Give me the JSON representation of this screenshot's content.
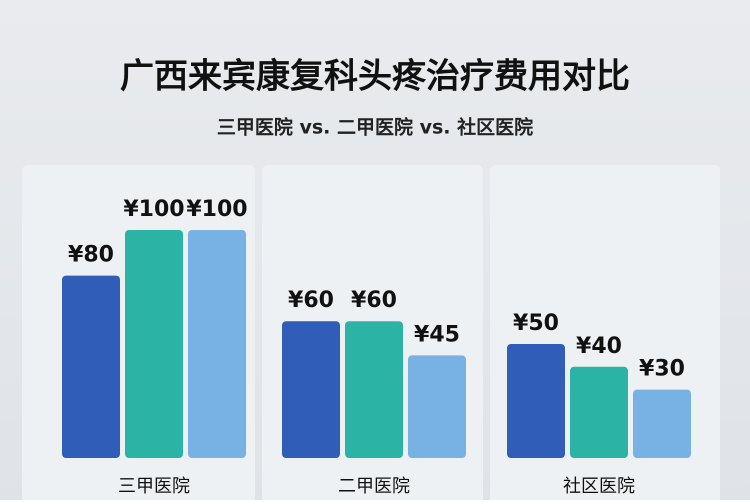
{
  "chart_data": {
    "type": "bar",
    "title": "广西来宾康复科头疼治疗费用对比",
    "subtitle": "三甲医院 vs. 二甲医院 vs. 社区医院",
    "categories": [
      "三甲医院",
      "二甲医院",
      "社区医院"
    ],
    "series": [
      {
        "color": "#2f5db8",
        "values": [
          80,
          60,
          50
        ],
        "value_labels": [
          "¥80",
          "¥60",
          "¥50"
        ]
      },
      {
        "color": "#2bb3a6",
        "values": [
          100,
          60,
          40
        ],
        "value_labels": [
          "¥100",
          "¥60",
          "¥40"
        ]
      },
      {
        "color": "#78b2e4",
        "values": [
          100,
          45,
          30
        ],
        "value_labels": [
          "¥100",
          "¥45",
          "¥30"
        ]
      }
    ]
  }
}
